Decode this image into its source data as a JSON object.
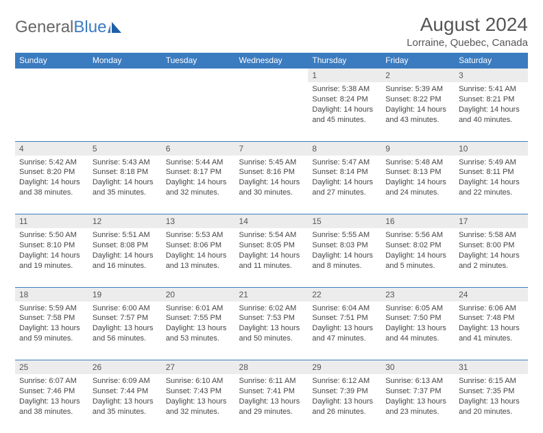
{
  "logo": {
    "name": "General",
    "accent": "Blue"
  },
  "title": "August 2024",
  "location": "Lorraine, Quebec, Canada",
  "colors": {
    "header_bg": "#3b7bbf",
    "header_text": "#ffffff",
    "daynum_bg": "#ececec",
    "border": "#3b7bbf",
    "text": "#444444"
  },
  "day_headers": [
    "Sunday",
    "Monday",
    "Tuesday",
    "Wednesday",
    "Thursday",
    "Friday",
    "Saturday"
  ],
  "weeks": [
    [
      null,
      null,
      null,
      null,
      {
        "n": "1",
        "sr": "5:38 AM",
        "ss": "8:24 PM",
        "h": "14",
        "m": "45"
      },
      {
        "n": "2",
        "sr": "5:39 AM",
        "ss": "8:22 PM",
        "h": "14",
        "m": "43"
      },
      {
        "n": "3",
        "sr": "5:41 AM",
        "ss": "8:21 PM",
        "h": "14",
        "m": "40"
      }
    ],
    [
      {
        "n": "4",
        "sr": "5:42 AM",
        "ss": "8:20 PM",
        "h": "14",
        "m": "38"
      },
      {
        "n": "5",
        "sr": "5:43 AM",
        "ss": "8:18 PM",
        "h": "14",
        "m": "35"
      },
      {
        "n": "6",
        "sr": "5:44 AM",
        "ss": "8:17 PM",
        "h": "14",
        "m": "32"
      },
      {
        "n": "7",
        "sr": "5:45 AM",
        "ss": "8:16 PM",
        "h": "14",
        "m": "30"
      },
      {
        "n": "8",
        "sr": "5:47 AM",
        "ss": "8:14 PM",
        "h": "14",
        "m": "27"
      },
      {
        "n": "9",
        "sr": "5:48 AM",
        "ss": "8:13 PM",
        "h": "14",
        "m": "24"
      },
      {
        "n": "10",
        "sr": "5:49 AM",
        "ss": "8:11 PM",
        "h": "14",
        "m": "22"
      }
    ],
    [
      {
        "n": "11",
        "sr": "5:50 AM",
        "ss": "8:10 PM",
        "h": "14",
        "m": "19"
      },
      {
        "n": "12",
        "sr": "5:51 AM",
        "ss": "8:08 PM",
        "h": "14",
        "m": "16"
      },
      {
        "n": "13",
        "sr": "5:53 AM",
        "ss": "8:06 PM",
        "h": "14",
        "m": "13"
      },
      {
        "n": "14",
        "sr": "5:54 AM",
        "ss": "8:05 PM",
        "h": "14",
        "m": "11"
      },
      {
        "n": "15",
        "sr": "5:55 AM",
        "ss": "8:03 PM",
        "h": "14",
        "m": "8"
      },
      {
        "n": "16",
        "sr": "5:56 AM",
        "ss": "8:02 PM",
        "h": "14",
        "m": "5"
      },
      {
        "n": "17",
        "sr": "5:58 AM",
        "ss": "8:00 PM",
        "h": "14",
        "m": "2"
      }
    ],
    [
      {
        "n": "18",
        "sr": "5:59 AM",
        "ss": "7:58 PM",
        "h": "13",
        "m": "59"
      },
      {
        "n": "19",
        "sr": "6:00 AM",
        "ss": "7:57 PM",
        "h": "13",
        "m": "56"
      },
      {
        "n": "20",
        "sr": "6:01 AM",
        "ss": "7:55 PM",
        "h": "13",
        "m": "53"
      },
      {
        "n": "21",
        "sr": "6:02 AM",
        "ss": "7:53 PM",
        "h": "13",
        "m": "50"
      },
      {
        "n": "22",
        "sr": "6:04 AM",
        "ss": "7:51 PM",
        "h": "13",
        "m": "47"
      },
      {
        "n": "23",
        "sr": "6:05 AM",
        "ss": "7:50 PM",
        "h": "13",
        "m": "44"
      },
      {
        "n": "24",
        "sr": "6:06 AM",
        "ss": "7:48 PM",
        "h": "13",
        "m": "41"
      }
    ],
    [
      {
        "n": "25",
        "sr": "6:07 AM",
        "ss": "7:46 PM",
        "h": "13",
        "m": "38"
      },
      {
        "n": "26",
        "sr": "6:09 AM",
        "ss": "7:44 PM",
        "h": "13",
        "m": "35"
      },
      {
        "n": "27",
        "sr": "6:10 AM",
        "ss": "7:43 PM",
        "h": "13",
        "m": "32"
      },
      {
        "n": "28",
        "sr": "6:11 AM",
        "ss": "7:41 PM",
        "h": "13",
        "m": "29"
      },
      {
        "n": "29",
        "sr": "6:12 AM",
        "ss": "7:39 PM",
        "h": "13",
        "m": "26"
      },
      {
        "n": "30",
        "sr": "6:13 AM",
        "ss": "7:37 PM",
        "h": "13",
        "m": "23"
      },
      {
        "n": "31",
        "sr": "6:15 AM",
        "ss": "7:35 PM",
        "h": "13",
        "m": "20"
      }
    ]
  ]
}
